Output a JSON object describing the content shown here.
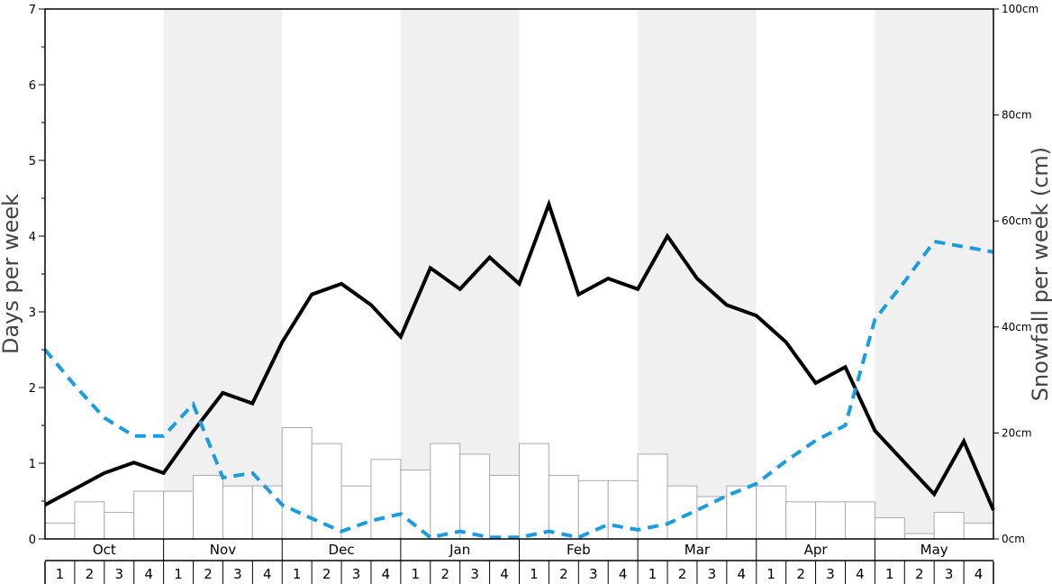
{
  "chart_data": {
    "type": "bar",
    "left_axis": {
      "label": "Days per week",
      "ylim": [
        0,
        7
      ],
      "ticks": [
        "0",
        "1",
        "2",
        "3",
        "4",
        "5",
        "6",
        "7"
      ]
    },
    "right_axis": {
      "label": "Snowfall per week (cm)",
      "ylim": [
        0,
        100
      ],
      "ticks": [
        "0cm",
        "20cm",
        "40cm",
        "60cm",
        "80cm",
        "100cm"
      ]
    },
    "months": [
      "Oct",
      "Nov",
      "Dec",
      "Jan",
      "Feb",
      "Mar",
      "Apr",
      "May"
    ],
    "weeks": [
      "1",
      "2",
      "3",
      "4"
    ],
    "shaded_months": [
      1,
      3,
      5,
      7
    ],
    "colors": {
      "bar_fill": "#ffffff",
      "bar_stroke": "#aaaaaa",
      "solid_line": "#000000",
      "dashed_line": "#1a9de0",
      "shade": "#f0f0f0"
    },
    "series": [
      {
        "style": "bars",
        "axis": "right",
        "values": [
          3,
          7,
          5,
          9,
          9,
          12,
          10,
          10,
          21,
          18,
          10,
          15,
          13,
          18,
          16,
          12,
          18,
          12,
          11,
          11,
          16,
          10,
          8,
          10,
          10,
          7,
          7,
          7,
          4,
          1,
          5,
          3
        ]
      },
      {
        "style": "solid",
        "axis": "left",
        "values": [
          0.45,
          0.66,
          0.87,
          1.01,
          0.87,
          1.42,
          1.93,
          1.79,
          2.6,
          3.23,
          3.37,
          3.09,
          2.67,
          3.58,
          3.3,
          3.72,
          3.37,
          4.42,
          3.23,
          3.44,
          3.3,
          4.0,
          3.44,
          3.09,
          2.95,
          2.6,
          2.06,
          2.27,
          1.43,
          1.01,
          0.59,
          1.29,
          0.38
        ]
      },
      {
        "style": "dashed",
        "axis": "left",
        "values": [
          2.5,
          2.03,
          1.6,
          1.36,
          1.36,
          1.78,
          0.81,
          0.87,
          0.45,
          0.27,
          0.1,
          0.24,
          0.33,
          0.02,
          0.1,
          0.02,
          0.02,
          0.1,
          0.02,
          0.19,
          0.12,
          0.2,
          0.38,
          0.57,
          0.73,
          1.03,
          1.3,
          1.5,
          2.9,
          3.4,
          3.93,
          3.86,
          3.79
        ]
      }
    ]
  }
}
